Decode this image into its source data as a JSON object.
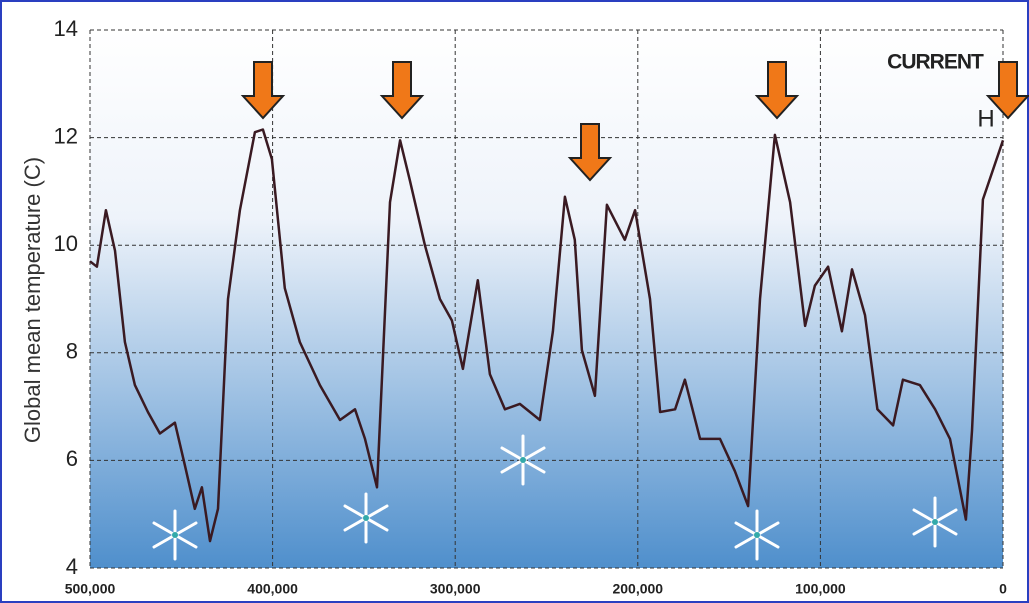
{
  "chart_data": {
    "type": "line",
    "y_label": "Global mean temperature (C)",
    "annotations": [
      "CURRENT",
      "H"
    ],
    "x": [
      500000,
      496200,
      491300,
      486300,
      480900,
      475400,
      468300,
      461700,
      453500,
      448000,
      442600,
      438700,
      434300,
      429900,
      424400,
      417900,
      409700,
      405300,
      400400,
      393300,
      385100,
      374100,
      363100,
      354900,
      349400,
      342800,
      335700,
      330200,
      324800,
      316600,
      308400,
      301800,
      295800,
      287600,
      281000,
      272800,
      264600,
      253600,
      246500,
      239900,
      234500,
      230600,
      223500,
      216900,
      207100,
      201500,
      193300,
      187800,
      179600,
      174200,
      165900,
      155000,
      146800,
      139600,
      133100,
      124900,
      116600,
      108400,
      103000,
      95800,
      88200,
      82700,
      75600,
      68800,
      60200,
      54800,
      45500,
      37200,
      29000,
      20300,
      17000,
      11000,
      0
    ],
    "series": [
      {
        "name": "Global mean temperature",
        "color": "#3a1a22",
        "values": [
          9.7,
          9.6,
          10.65,
          9.9,
          8.2,
          7.4,
          6.9,
          6.5,
          6.7,
          5.9,
          5.1,
          5.5,
          4.5,
          5.1,
          9.0,
          10.65,
          12.1,
          12.15,
          11.6,
          9.2,
          8.2,
          7.4,
          6.75,
          6.95,
          6.4,
          5.5,
          10.8,
          11.95,
          11.2,
          10.0,
          9.0,
          8.6,
          7.7,
          9.35,
          7.6,
          6.95,
          7.05,
          6.75,
          8.4,
          10.9,
          10.1,
          8.05,
          7.2,
          10.75,
          10.1,
          10.65,
          9.0,
          6.9,
          6.95,
          7.5,
          6.4,
          6.4,
          5.8,
          5.15,
          9.0,
          12.05,
          10.8,
          8.5,
          9.25,
          9.6,
          8.4,
          9.55,
          8.7,
          6.95,
          6.65,
          7.5,
          7.4,
          6.95,
          6.4,
          4.9,
          6.55,
          10.85,
          11.95
        ]
      }
    ],
    "xlim": [
      500000,
      0
    ],
    "xticks": [
      {
        "value": 500000,
        "label": "500,000"
      },
      {
        "value": 400000,
        "label": "400,000"
      },
      {
        "value": 300000,
        "label": "300,000"
      },
      {
        "value": 200000,
        "label": "200,000"
      },
      {
        "value": 100000,
        "label": "100,000"
      },
      0
    ],
    "ylim": [
      4,
      14
    ],
    "yticks": [
      4,
      6,
      8,
      10,
      12,
      14
    ],
    "grid": true
  }
}
